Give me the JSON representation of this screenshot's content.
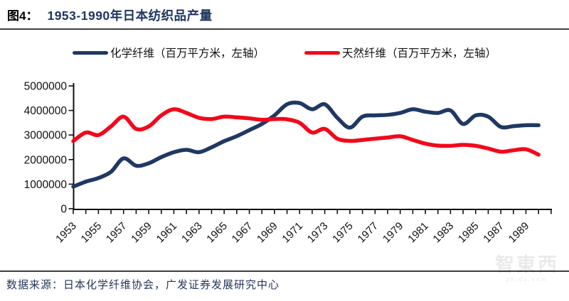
{
  "header": {
    "figure_label": "图4：",
    "title": "1953-1990年日本纺织品产量"
  },
  "legend": [
    {
      "label": "化学纤维（百万平方米，左轴）",
      "color": "#1f3864"
    },
    {
      "label": "天然纤维（百万平方米，左轴）",
      "color": "#f2081b"
    }
  ],
  "chart_data": {
    "type": "line",
    "title": "1953-1990年日本纺织品产量",
    "xlabel": "",
    "ylabel": "",
    "ylim": [
      0,
      5000000
    ],
    "x_range": [
      1953,
      1990
    ],
    "grid": false,
    "legend_position": "top",
    "x": [
      1953,
      1954,
      1955,
      1956,
      1957,
      1958,
      1959,
      1960,
      1961,
      1962,
      1963,
      1964,
      1965,
      1966,
      1967,
      1968,
      1969,
      1970,
      1971,
      1972,
      1973,
      1974,
      1975,
      1976,
      1977,
      1978,
      1979,
      1980,
      1981,
      1982,
      1983,
      1984,
      1985,
      1986,
      1987,
      1988,
      1989,
      1990
    ],
    "series": [
      {
        "name": "化学纤维（百万平方米，左轴）",
        "color": "#1f3864",
        "values": [
          900000,
          1100000,
          1250000,
          1500000,
          2050000,
          1750000,
          1850000,
          2100000,
          2300000,
          2400000,
          2300000,
          2500000,
          2750000,
          2950000,
          3200000,
          3450000,
          3800000,
          4250000,
          4300000,
          4050000,
          4250000,
          3700000,
          3300000,
          3750000,
          3800000,
          3820000,
          3900000,
          4050000,
          3950000,
          3900000,
          4000000,
          3450000,
          3800000,
          3750000,
          3330000,
          3360000,
          3400000,
          3400000
        ]
      },
      {
        "name": "天然纤维（百万平方米，左轴）",
        "color": "#f2081b",
        "values": [
          2750000,
          3100000,
          3000000,
          3350000,
          3750000,
          3250000,
          3350000,
          3800000,
          4050000,
          3900000,
          3700000,
          3650000,
          3750000,
          3720000,
          3680000,
          3620000,
          3650000,
          3640000,
          3500000,
          3100000,
          3250000,
          2850000,
          2760000,
          2800000,
          2850000,
          2900000,
          2950000,
          2800000,
          2650000,
          2570000,
          2560000,
          2600000,
          2560000,
          2450000,
          2320000,
          2380000,
          2420000,
          2200000
        ]
      }
    ],
    "y_tick_labels": [
      "5000000",
      "4000000",
      "3000000",
      "2000000",
      "1000000",
      "0"
    ],
    "x_tick_labels": [
      "1953",
      "1955",
      "1957",
      "1959",
      "1961",
      "1963",
      "1965",
      "1967",
      "1969",
      "1971",
      "1973",
      "1975",
      "1977",
      "1979",
      "1981",
      "1983",
      "1985",
      "1987",
      "1989"
    ]
  },
  "footer": {
    "source": "数据来源：日本化学纤维协会，广发证券发展研究中心"
  },
  "watermark": {
    "text": "智東西",
    "subtext": "zhidx.com"
  }
}
